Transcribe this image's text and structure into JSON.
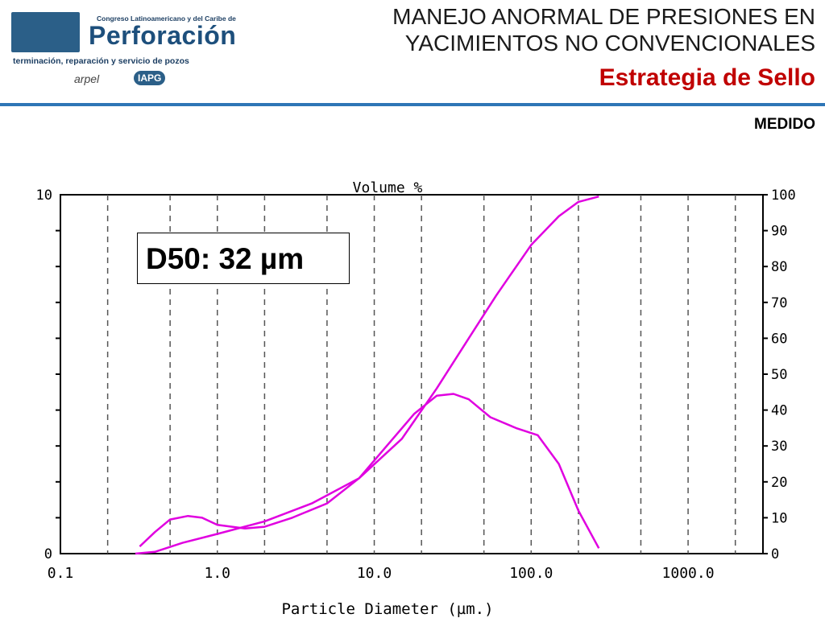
{
  "header": {
    "logo_small": "Congreso Latinoamericano y del Caribe de",
    "logo_big": "Perforación",
    "logo_sub": "terminación, reparación y servicio de pozos",
    "partner1": "arpel",
    "partner2": "IAPG",
    "title_line1": "MANEJO ANORMAL DE PRESIONES EN",
    "title_line2": "YACIMIENTOS NO CONVENCIONALES",
    "subtitle": "Estrategia de Sello",
    "label": "MEDIDO"
  },
  "annotation": "D50: 32 µm",
  "chart_data": {
    "type": "line",
    "title": "Volume %",
    "xlabel": "Particle Diameter (µm.)",
    "xscale": "log",
    "xlim": [
      0.1,
      3000
    ],
    "xticks": [
      "0.1",
      "1.0",
      "10.0",
      "100.0",
      "1000.0"
    ],
    "ylim_left": [
      0,
      10
    ],
    "yticks_left": [
      "0",
      "10"
    ],
    "ylim_right": [
      0,
      100
    ],
    "yticks_right": [
      "0",
      "10",
      "20",
      "30",
      "40",
      "50",
      "60",
      "70",
      "80",
      "90",
      "100"
    ],
    "grid": "vertical dashed",
    "color": "#e000e0",
    "series": [
      {
        "axis": "left",
        "x": [
          0.32,
          0.4,
          0.5,
          0.65,
          0.8,
          1.0,
          1.5,
          2.0,
          3.0,
          5.0,
          8.0,
          12.0,
          18.0,
          25.0,
          32.0,
          40.0,
          55.0,
          80.0,
          110.0,
          150.0,
          200.0,
          270.0
        ],
        "y": [
          0.2,
          0.6,
          0.95,
          1.05,
          1.0,
          0.8,
          0.7,
          0.75,
          1.0,
          1.4,
          2.1,
          3.0,
          3.9,
          4.4,
          4.45,
          4.3,
          3.8,
          3.5,
          3.3,
          2.5,
          1.2,
          0.15
        ]
      },
      {
        "axis": "right",
        "x": [
          0.3,
          0.4,
          0.6,
          1.0,
          2.0,
          4.0,
          8.0,
          15.0,
          25.0,
          40.0,
          60.0,
          100.0,
          150.0,
          200.0,
          270.0
        ],
        "y": [
          0,
          0.5,
          3,
          5.5,
          9,
          14,
          21,
          32,
          46,
          60,
          72,
          86,
          94,
          98,
          99.5
        ]
      }
    ]
  }
}
